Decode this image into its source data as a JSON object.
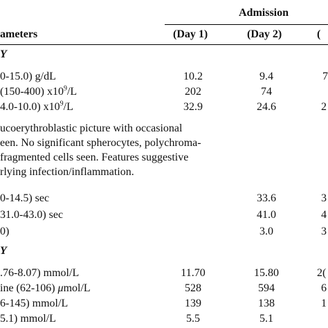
{
  "header": {
    "group": "Admission",
    "parameters": "ameters",
    "day1": "(Day 1)",
    "day2": "(Day 2)",
    "day3_partial": "("
  },
  "sections": {
    "hematology_partial": "Y",
    "biochemistry_partial": "Y"
  },
  "rows": [
    {
      "label": "0-15.0) g/dL",
      "d1": "10.2",
      "d2": "9.4",
      "d3": "7"
    },
    {
      "label": "(150-400) x10",
      "sup": "9",
      "label_tail": "/L",
      "d1": "202",
      "d2": "74",
      "d3": ""
    },
    {
      "label": "4.0-10.0) x10",
      "sup": "9",
      "label_tail": "/L",
      "d1": "32.9",
      "d2": "24.6",
      "d3": "2"
    },
    {
      "label": "0-14.5) sec",
      "d1": "",
      "d2": "33.6",
      "d3": "3"
    },
    {
      "label": "31.0-43.0) sec",
      "d1": "",
      "d2": "41.0",
      "d3": "4"
    },
    {
      "label": "0)",
      "d1": "",
      "d2": "3.0",
      "d3": "3"
    },
    {
      "label": ".76-8.07) mmol/L",
      "d1": "11.70",
      "d2": "15.80",
      "d3": "2("
    },
    {
      "label": "ine (62-106) ",
      "mu": "μ",
      "label_tail": "mol/L",
      "d1": "528",
      "d2": "594",
      "d3": "6"
    },
    {
      "label": "6-145) mmol/L",
      "d1": "139",
      "d2": "138",
      "d3": "1"
    },
    {
      "label": "5.1) mmol/L",
      "d1": "5.5",
      "d2": "5.1",
      "d3": ""
    }
  ],
  "film_note": {
    "line1": "ucoerythroblastic picture with occasional",
    "line2": "een. No significant spherocytes, polychroma-",
    "line3": "fragmented cells seen. Features suggestive",
    "line4": "rlying infection/inflammation."
  }
}
